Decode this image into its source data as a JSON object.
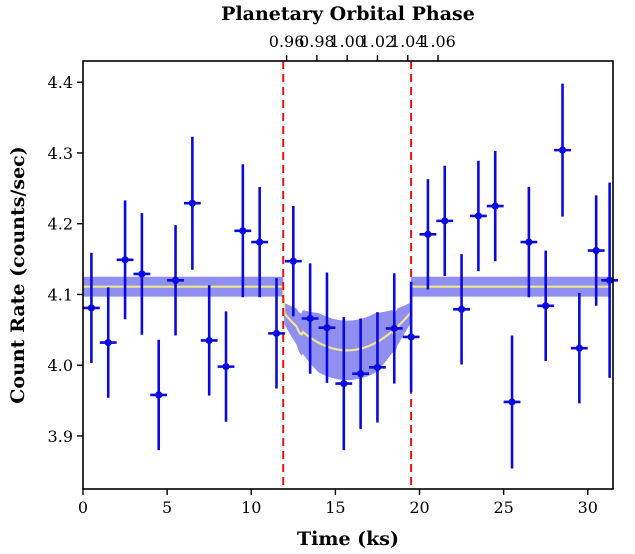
{
  "chart_data": {
    "type": "scatter",
    "xlabel": "Time (ks)",
    "ylabel": "Count Rate (counts/sec)",
    "top_xlabel": "Planetary Orbital Phase",
    "xlim": [
      0,
      31.5
    ],
    "ylim": [
      3.825,
      4.43
    ],
    "x_ticks": [
      0,
      5,
      10,
      15,
      20,
      25,
      30
    ],
    "y_ticks": [
      3.9,
      4.0,
      4.1,
      4.2,
      4.3,
      4.4
    ],
    "x_tick_labels": [
      "0",
      "5",
      "10",
      "15",
      "20",
      "25",
      "30"
    ],
    "y_tick_labels": [
      "3.9",
      "4.0",
      "4.1",
      "4.2",
      "4.3",
      "4.4"
    ],
    "top_axis": {
      "phase_ticks": [
        0.96,
        0.98,
        1.0,
        1.02,
        1.04,
        1.06
      ],
      "tick_labels": [
        "0.96",
        "0.98",
        "1.00",
        "1.02",
        "1.04",
        "1.06"
      ],
      "center_time": 15.7,
      "ks_per_phase_unit": 0.09
    },
    "transit_boundaries": [
      11.9,
      19.5
    ],
    "model": {
      "baseline": 4.111,
      "depth_min": 4.021,
      "band_half_width_outside": 0.014,
      "band_half_width_inside": 0.042,
      "ingress_end": 13.0,
      "egress_start": 18.4
    },
    "series": [
      {
        "points": [
          {
            "x": 0.5,
            "y": 4.081,
            "yerr": 0.078
          },
          {
            "x": 1.5,
            "y": 4.032,
            "yerr": 0.078
          },
          {
            "x": 2.5,
            "y": 4.149,
            "yerr": 0.084
          },
          {
            "x": 3.5,
            "y": 4.129,
            "yerr": 0.086
          },
          {
            "x": 4.5,
            "y": 3.958,
            "yerr": 0.078
          },
          {
            "x": 5.5,
            "y": 4.12,
            "yerr": 0.078
          },
          {
            "x": 6.5,
            "y": 4.229,
            "yerr": 0.094
          },
          {
            "x": 7.5,
            "y": 4.035,
            "yerr": 0.078
          },
          {
            "x": 8.5,
            "y": 3.998,
            "yerr": 0.078
          },
          {
            "x": 9.5,
            "y": 4.19,
            "yerr": 0.094
          },
          {
            "x": 10.5,
            "y": 4.174,
            "yerr": 0.078
          },
          {
            "x": 11.5,
            "y": 4.045,
            "yerr": 0.078
          },
          {
            "x": 12.5,
            "y": 4.147,
            "yerr": 0.078
          },
          {
            "x": 13.5,
            "y": 4.066,
            "yerr": 0.078
          },
          {
            "x": 14.5,
            "y": 4.053,
            "yerr": 0.078
          },
          {
            "x": 15.5,
            "y": 3.974,
            "yerr": 0.094
          },
          {
            "x": 16.5,
            "y": 3.988,
            "yerr": 0.078
          },
          {
            "x": 17.5,
            "y": 3.997,
            "yerr": 0.078
          },
          {
            "x": 18.5,
            "y": 4.052,
            "yerr": 0.078
          },
          {
            "x": 19.5,
            "y": 4.04,
            "yerr": 0.078
          },
          {
            "x": 20.5,
            "y": 4.185,
            "yerr": 0.078
          },
          {
            "x": 21.5,
            "y": 4.204,
            "yerr": 0.078
          },
          {
            "x": 22.5,
            "y": 4.079,
            "yerr": 0.078
          },
          {
            "x": 23.5,
            "y": 4.211,
            "yerr": 0.078
          },
          {
            "x": 24.5,
            "y": 4.225,
            "yerr": 0.078
          },
          {
            "x": 25.5,
            "y": 3.948,
            "yerr": 0.094
          },
          {
            "x": 26.5,
            "y": 4.174,
            "yerr": 0.078
          },
          {
            "x": 27.5,
            "y": 4.084,
            "yerr": 0.078
          },
          {
            "x": 28.5,
            "y": 4.304,
            "yerr": 0.094
          },
          {
            "x": 29.5,
            "y": 4.024,
            "yerr": 0.078
          },
          {
            "x": 30.5,
            "y": 4.162,
            "yerr": 0.078
          },
          {
            "x": 31.3,
            "y": 4.12,
            "yerr": 0.138
          }
        ]
      }
    ],
    "colors": {
      "points": "#0a0ae0",
      "band": "#7b7bee",
      "model_line": "#f0e68c",
      "transit_lines": "#ee1111"
    }
  }
}
